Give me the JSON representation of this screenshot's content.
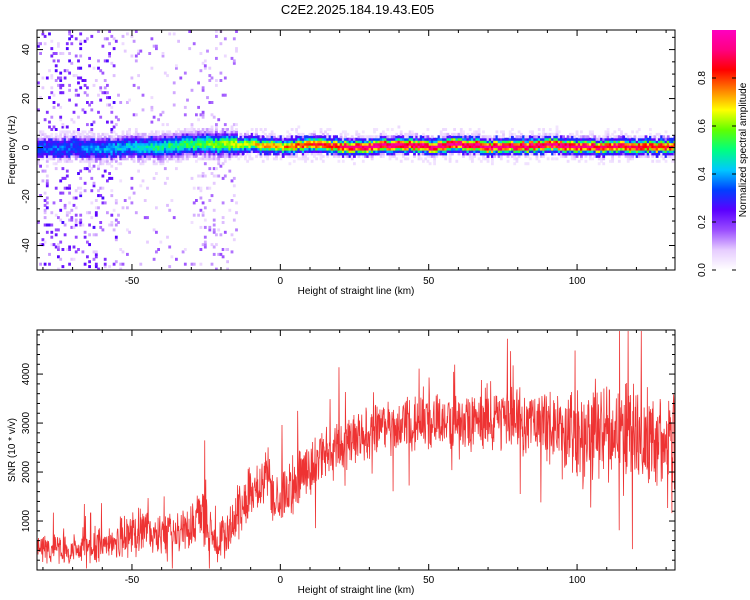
{
  "title": "C2E2.2025.184.19.43.E05",
  "chart_data": [
    {
      "type": "heatmap",
      "xlabel": "Height of straight line (km)",
      "ylabel": "Frequency (Hz)",
      "xlim": [
        -82,
        133
      ],
      "ylim": [
        -50,
        48
      ],
      "xticks": [
        -50,
        0,
        50,
        100
      ],
      "yticks": [
        -40,
        -20,
        0,
        20,
        40
      ],
      "colorbar": {
        "label": "Normalized spectral amplitude",
        "range": [
          0.0,
          1.0
        ],
        "ticks": [
          0.0,
          0.2,
          0.4,
          0.6,
          0.8
        ],
        "colors": [
          "#ffffff",
          "#e6ccff",
          "#9a4dff",
          "#5a00ff",
          "#0040ff",
          "#00c8ff",
          "#00ff80",
          "#60ff00",
          "#ffff00",
          "#ff8000",
          "#ff0000",
          "#ff0080",
          "#ff00c0"
        ]
      },
      "ridge": {
        "x": [
          -82,
          -70,
          -60,
          -50,
          -40,
          -30,
          -20,
          -10,
          0,
          10,
          20,
          30,
          40,
          50,
          60,
          70,
          80,
          90,
          100,
          110,
          120,
          133
        ],
        "center_hz": [
          -1,
          0,
          -1,
          0,
          0,
          1,
          1,
          1,
          0,
          1,
          0,
          0,
          1,
          0,
          1,
          0,
          0,
          1,
          0,
          0,
          0,
          0
        ],
        "amplitude": [
          0.35,
          0.35,
          0.4,
          0.45,
          0.5,
          0.55,
          0.6,
          0.7,
          0.75,
          0.85,
          0.9,
          0.95,
          0.95,
          0.95,
          0.95,
          0.95,
          0.95,
          0.95,
          0.95,
          0.9,
          0.9,
          0.85
        ]
      }
    },
    {
      "type": "line",
      "xlabel": "Height of straight line (km)",
      "ylabel": "SNR (10 * v/v)",
      "xlim": [
        -82,
        133
      ],
      "ylim": [
        0,
        4900
      ],
      "xticks": [
        -50,
        0,
        50,
        100
      ],
      "yticks": [
        1000,
        2000,
        3000,
        4000
      ],
      "color": "#ee3333",
      "series": [
        {
          "x": [
            -82,
            -75,
            -70,
            -65,
            -60,
            -55,
            -50,
            -45,
            -40,
            -35,
            -30,
            -26,
            -22,
            -20,
            -15,
            -10,
            -5,
            0,
            5,
            10,
            15,
            20,
            25,
            30,
            35,
            40,
            45,
            50,
            55,
            60,
            65,
            70,
            75,
            80,
            85,
            90,
            95,
            100,
            105,
            110,
            115,
            120,
            125,
            130,
            133
          ],
          "y": [
            500,
            450,
            400,
            420,
            550,
            650,
            750,
            800,
            700,
            850,
            900,
            1150,
            550,
            650,
            1100,
            1600,
            1800,
            1450,
            1850,
            2050,
            2350,
            2500,
            2650,
            2850,
            2950,
            2900,
            2950,
            3050,
            3000,
            3050,
            3000,
            3100,
            3100,
            3000,
            3000,
            3000,
            2950,
            2750,
            2750,
            2850,
            2800,
            2800,
            2700,
            2650,
            2700
          ],
          "spread": [
            300,
            300,
            300,
            320,
            380,
            400,
            450,
            450,
            450,
            450,
            500,
            600,
            300,
            450,
            550,
            550,
            550,
            600,
            600,
            600,
            600,
            550,
            500,
            500,
            500,
            500,
            550,
            550,
            550,
            550,
            550,
            600,
            600,
            650,
            700,
            750,
            750,
            850,
            900,
            950,
            950,
            950,
            950,
            950,
            900
          ]
        }
      ]
    }
  ]
}
